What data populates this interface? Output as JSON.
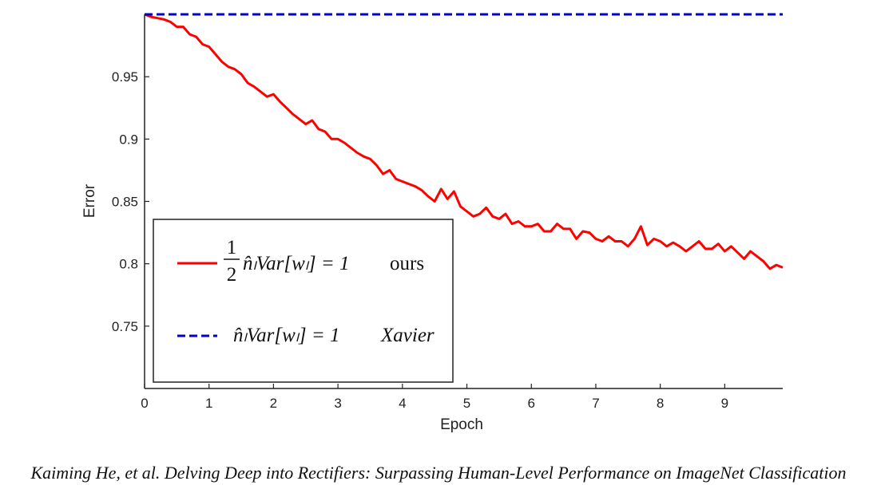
{
  "chart_data": {
    "type": "line",
    "xlabel": "Epoch",
    "ylabel": "Error",
    "xlim": [
      0,
      9.9
    ],
    "ylim": [
      0.7,
      1.0
    ],
    "xticks": [
      "0",
      "1",
      "2",
      "3",
      "4",
      "5",
      "6",
      "7",
      "8",
      "9"
    ],
    "yticks": [
      "0.75",
      "0.8",
      "0.85",
      "0.9",
      "0.95"
    ],
    "grid": false,
    "legend_position": "bottom-left",
    "series": [
      {
        "name": "ours",
        "legend_formula": {
          "frac_num": "1",
          "frac_den": "2",
          "rest": "n̂ₗVar[wₗ] = 1"
        },
        "color": "#ff0000",
        "style": "solid",
        "x": [
          0,
          0.1,
          0.2,
          0.3,
          0.4,
          0.5,
          0.6,
          0.7,
          0.8,
          0.9,
          1.0,
          1.1,
          1.2,
          1.3,
          1.4,
          1.5,
          1.6,
          1.7,
          1.8,
          1.9,
          2.0,
          2.1,
          2.2,
          2.3,
          2.4,
          2.5,
          2.6,
          2.7,
          2.8,
          2.9,
          3.0,
          3.1,
          3.2,
          3.3,
          3.4,
          3.5,
          3.6,
          3.7,
          3.8,
          3.9,
          4.0,
          4.1,
          4.2,
          4.3,
          4.4,
          4.5,
          4.6,
          4.7,
          4.8,
          4.9,
          5.0,
          5.1,
          5.2,
          5.3,
          5.4,
          5.5,
          5.6,
          5.7,
          5.8,
          5.9,
          6.0,
          6.1,
          6.2,
          6.3,
          6.4,
          6.5,
          6.6,
          6.7,
          6.8,
          6.9,
          7.0,
          7.1,
          7.2,
          7.3,
          7.4,
          7.5,
          7.6,
          7.7,
          7.8,
          7.9,
          8.0,
          8.1,
          8.2,
          8.3,
          8.4,
          8.5,
          8.6,
          8.7,
          8.8,
          8.9,
          9.0,
          9.1,
          9.2,
          9.3,
          9.4,
          9.5,
          9.6,
          9.7,
          9.8,
          9.9
        ],
        "values": [
          1.0,
          0.998,
          0.997,
          0.996,
          0.994,
          0.99,
          0.99,
          0.984,
          0.982,
          0.976,
          0.974,
          0.968,
          0.962,
          0.958,
          0.956,
          0.952,
          0.945,
          0.942,
          0.938,
          0.934,
          0.936,
          0.93,
          0.925,
          0.92,
          0.916,
          0.912,
          0.915,
          0.908,
          0.906,
          0.9,
          0.9,
          0.897,
          0.893,
          0.889,
          0.886,
          0.884,
          0.879,
          0.872,
          0.875,
          0.868,
          0.866,
          0.864,
          0.862,
          0.859,
          0.854,
          0.85,
          0.86,
          0.852,
          0.858,
          0.846,
          0.842,
          0.838,
          0.84,
          0.845,
          0.838,
          0.836,
          0.84,
          0.832,
          0.834,
          0.83,
          0.83,
          0.832,
          0.826,
          0.826,
          0.832,
          0.828,
          0.828,
          0.82,
          0.826,
          0.825,
          0.82,
          0.818,
          0.822,
          0.818,
          0.818,
          0.814,
          0.82,
          0.83,
          0.815,
          0.82,
          0.818,
          0.814,
          0.817,
          0.814,
          0.81,
          0.814,
          0.818,
          0.812,
          0.812,
          0.816,
          0.81,
          0.814,
          0.809,
          0.804,
          0.81,
          0.806,
          0.802,
          0.796,
          0.799,
          0.797
        ]
      },
      {
        "name": "Xavier",
        "legend_formula": {
          "rest": "n̂ₗVar[wₗ] = 1"
        },
        "color": "#0000cc",
        "style": "dashed",
        "x": [
          0,
          9.9
        ],
        "values": [
          1.0,
          1.0
        ]
      }
    ]
  },
  "caption": "Kaiming He, et al. Delving Deep into Rectifiers: Surpassing Human-Level Performance on ImageNet Classification"
}
